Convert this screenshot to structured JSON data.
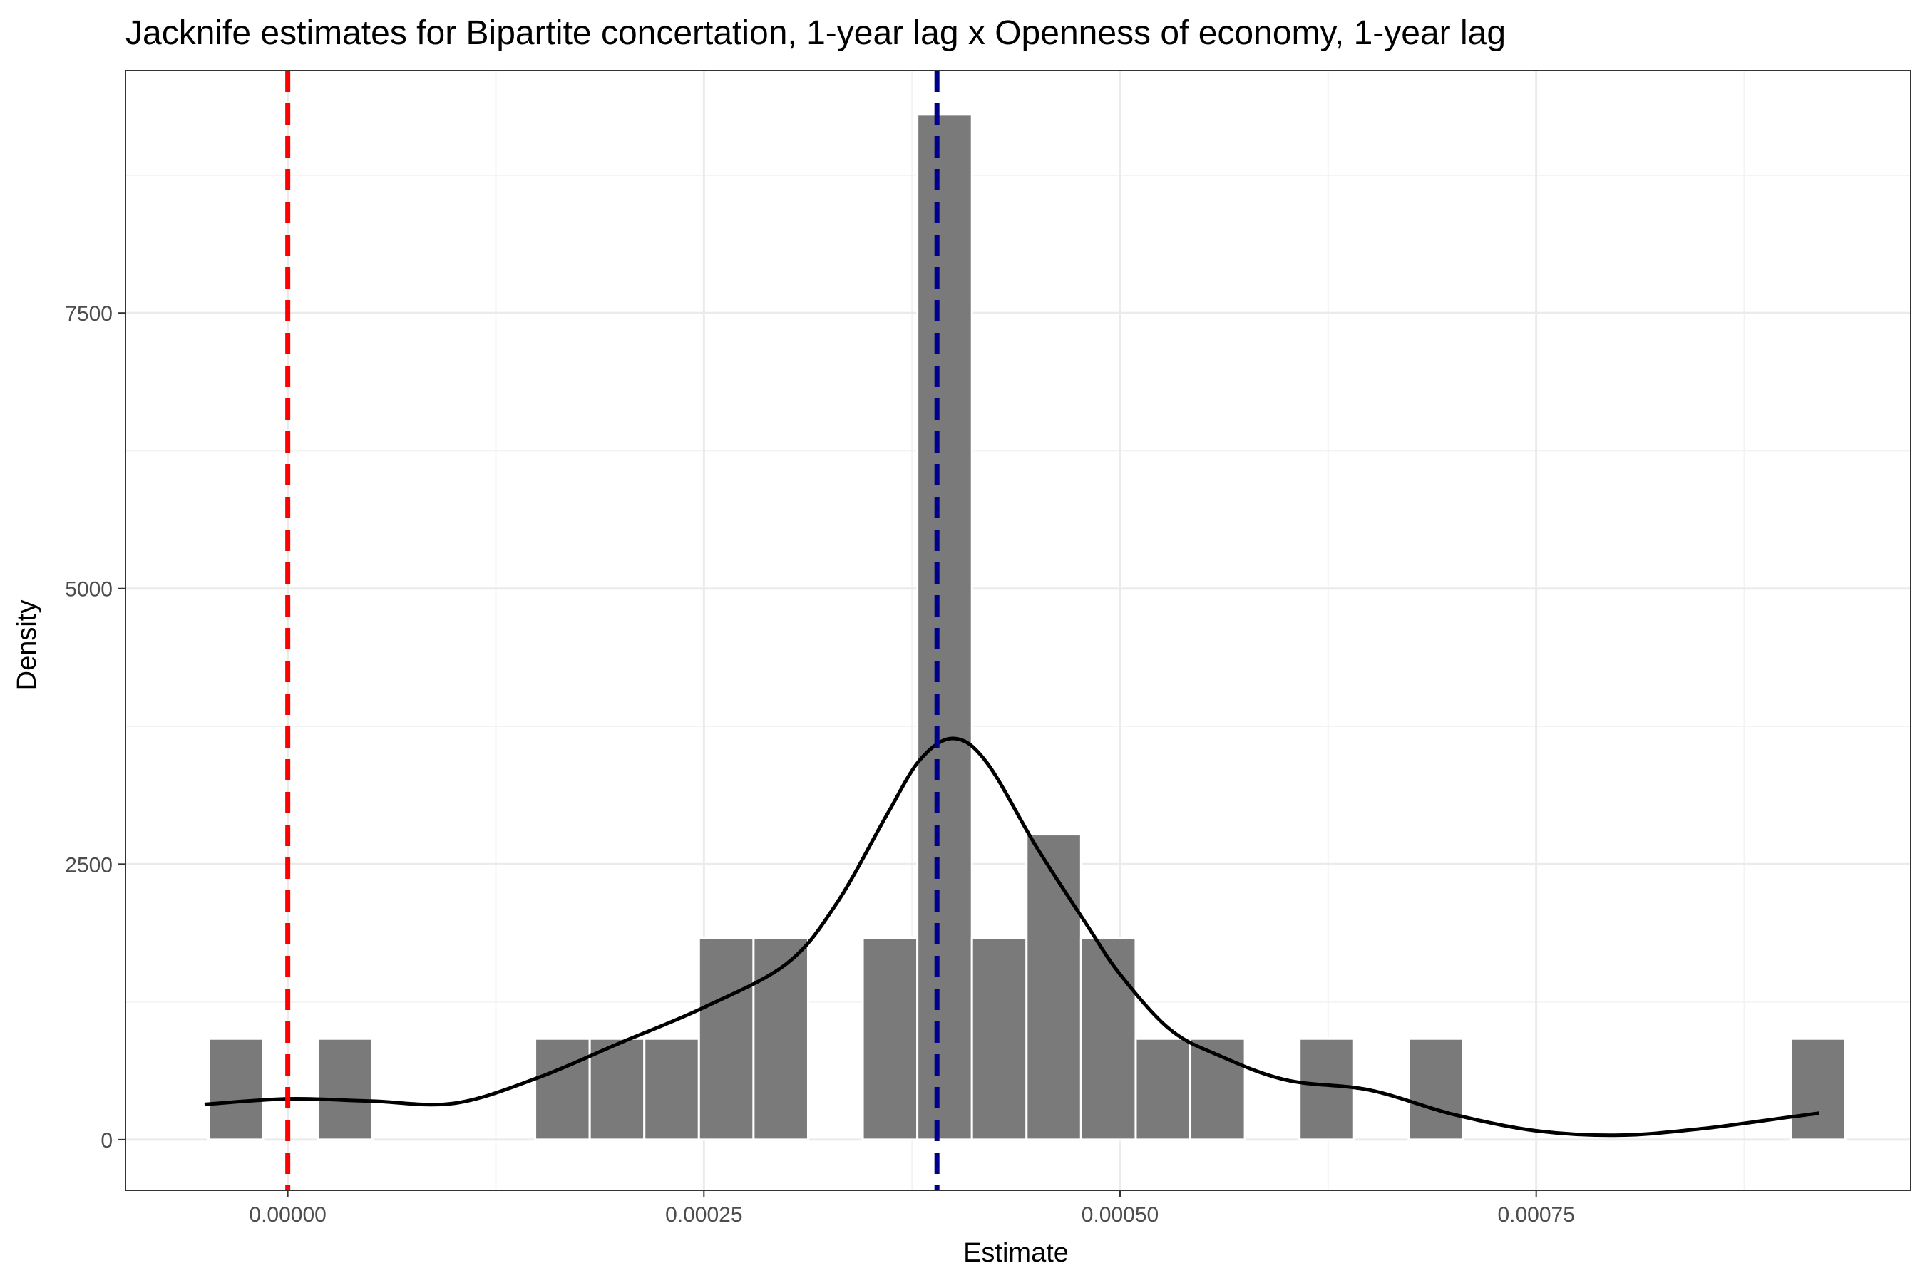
{
  "chart_data": {
    "type": "bar",
    "title": "Jacknife estimates for Bipartite concertation, 1-year lag x Openness of economy, 1-year lag",
    "xlabel": "Estimate",
    "ylabel": "Density",
    "xlim": [
      -9.75e-05,
      0.000975
    ],
    "ylim": [
      -460,
      9700
    ],
    "x_ticks": [
      0,
      0.00025,
      0.0005,
      0.00075
    ],
    "x_tick_labels": [
      "0.00000",
      "0.00025",
      "0.00050",
      "0.00075"
    ],
    "y_ticks": [
      0,
      2500,
      5000,
      7500
    ],
    "y_tick_labels": [
      "0",
      "2500",
      "5000",
      "7500"
    ],
    "bin_width": 3.28e-05,
    "bins": [
      {
        "x": -3.12e-05,
        "density": 916
      },
      {
        "x": 3.44e-05,
        "density": 916
      },
      {
        "x": 0.000165,
        "density": 916
      },
      {
        "x": 0.0001978,
        "density": 916
      },
      {
        "x": 0.0002306,
        "density": 916
      },
      {
        "x": 0.0002634,
        "density": 1832
      },
      {
        "x": 0.0002962,
        "density": 1832
      },
      {
        "x": 0.0003618,
        "density": 1832
      },
      {
        "x": 0.0003946,
        "density": 9300
      },
      {
        "x": 0.0004274,
        "density": 1832
      },
      {
        "x": 0.0004602,
        "density": 2770
      },
      {
        "x": 0.000493,
        "density": 1832
      },
      {
        "x": 0.0005258,
        "density": 916
      },
      {
        "x": 0.0005586,
        "density": 916
      },
      {
        "x": 0.0006242,
        "density": 916
      },
      {
        "x": 0.0006898,
        "density": 916
      },
      {
        "x": 0.0009194,
        "density": 916
      }
    ],
    "density_curve": {
      "x": [
        -5e-05,
        0.0,
        5e-05,
        0.0001,
        0.00015,
        0.0002,
        0.00025,
        0.0003,
        0.00033,
        0.00036,
        0.00038,
        0.0004,
        0.00042,
        0.00045,
        0.00048,
        0.0005,
        0.00053,
        0.00056,
        0.0006,
        0.00065,
        0.0007,
        0.00075,
        0.0008,
        0.00085,
        0.0009,
        0.00092
      ],
      "y": [
        320,
        370,
        350,
        330,
        560,
        880,
        1200,
        1600,
        2150,
        2950,
        3450,
        3640,
        3420,
        2650,
        1950,
        1500,
        1000,
        760,
        540,
        450,
        230,
        80,
        40,
        100,
        200,
        240
      ]
    },
    "reference_lines": [
      {
        "x": 0,
        "color": "#ff0000",
        "style": "dashed"
      },
      {
        "x": 0.00039,
        "color": "#00008b",
        "style": "dashed"
      }
    ],
    "colors": {
      "bar_fill": "#7a7a7a",
      "bar_outline": "#ffffff",
      "curve": "#000000",
      "grid_major": "#ebebeb",
      "grid_minor": "#f3f3f3",
      "panel_border": "#333333"
    },
    "grid": true,
    "legend": "none"
  }
}
